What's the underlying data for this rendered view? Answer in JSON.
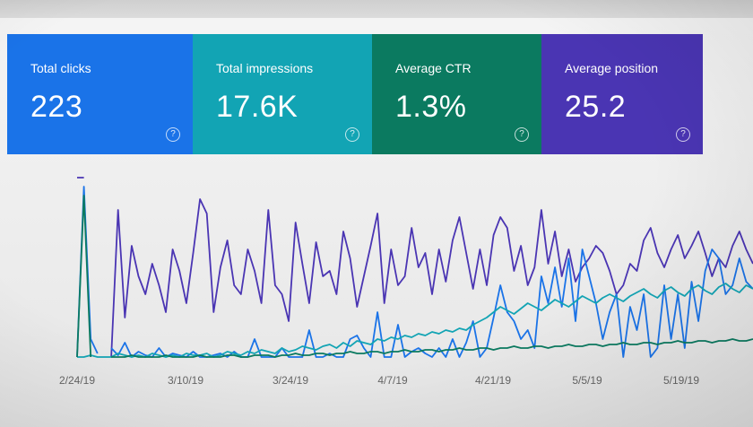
{
  "metrics": [
    {
      "label": "Total clicks",
      "value": "223",
      "color": "#1a73e8"
    },
    {
      "label": "Total impressions",
      "value": "17.6K",
      "color": "#12a4b4"
    },
    {
      "label": "Average CTR",
      "value": "1.3%",
      "color": "#0b7a60"
    },
    {
      "label": "Average position",
      "value": "25.2",
      "color": "#4a35b3"
    }
  ],
  "help_icon": "help-circle-icon",
  "help_glyph": "?",
  "chart_data": {
    "type": "line",
    "x_tick_labels": [
      "2/24/19",
      "3/10/19",
      "3/24/19",
      "4/7/19",
      "4/21/19",
      "5/5/19",
      "5/19/19"
    ],
    "series": [
      {
        "color": "#4a35b3",
        "values": [
          100,
          100,
          null,
          null,
          null,
          0,
          82,
          22,
          62,
          45,
          35,
          52,
          40,
          25,
          60,
          48,
          30,
          58,
          88,
          80,
          25,
          50,
          65,
          40,
          35,
          60,
          48,
          30,
          82,
          40,
          35,
          20,
          75,
          52,
          30,
          64,
          45,
          48,
          35,
          70,
          55,
          28,
          45,
          62,
          80,
          30,
          60,
          40,
          45,
          72,
          50,
          58,
          35,
          60,
          42,
          65,
          78,
          58,
          38,
          60,
          40,
          68,
          78,
          72,
          48,
          62,
          40,
          50,
          82,
          52,
          70,
          45,
          60,
          42,
          50,
          55,
          62,
          58,
          48,
          35,
          40,
          52,
          48,
          65,
          72,
          58,
          50,
          60,
          68,
          55,
          62,
          70,
          58,
          45,
          55,
          50,
          62,
          70,
          60,
          52
        ]
      },
      {
        "color": "#1a73e8",
        "values": [
          0,
          95,
          10,
          2,
          null,
          5,
          1,
          8,
          0,
          3,
          1,
          0,
          5,
          0,
          2,
          1,
          0,
          3,
          0,
          0,
          1,
          2,
          0,
          3,
          0,
          0,
          10,
          0,
          0,
          0,
          5,
          0,
          0,
          0,
          15,
          0,
          0,
          2,
          0,
          0,
          10,
          12,
          5,
          0,
          25,
          0,
          0,
          18,
          0,
          3,
          5,
          2,
          0,
          5,
          0,
          10,
          0,
          8,
          20,
          0,
          5,
          22,
          40,
          25,
          20,
          10,
          15,
          5,
          45,
          30,
          50,
          28,
          55,
          20,
          60,
          45,
          30,
          10,
          25,
          35,
          0,
          28,
          15,
          35,
          0,
          5,
          40,
          10,
          35,
          5,
          42,
          20,
          48,
          60,
          55,
          35,
          40,
          55,
          42,
          38
        ]
      },
      {
        "color": "#12a4b4",
        "values": [
          0,
          0,
          1,
          0,
          0,
          0,
          2,
          1,
          0,
          1,
          0,
          2,
          1,
          0,
          1,
          0,
          2,
          1,
          1,
          2,
          0,
          1,
          3,
          2,
          1,
          3,
          2,
          4,
          3,
          2,
          5,
          3,
          4,
          6,
          5,
          4,
          6,
          7,
          5,
          8,
          6,
          9,
          8,
          7,
          10,
          9,
          11,
          10,
          12,
          11,
          13,
          12,
          14,
          13,
          15,
          14,
          16,
          15,
          18,
          20,
          22,
          25,
          28,
          26,
          24,
          27,
          30,
          28,
          26,
          29,
          32,
          30,
          28,
          31,
          34,
          32,
          30,
          33,
          35,
          33,
          31,
          34,
          36,
          38,
          35,
          33,
          37,
          39,
          36,
          34,
          38,
          40,
          37,
          35,
          39,
          41,
          38,
          36,
          40,
          38
        ]
      },
      {
        "color": "#0b7a60",
        "values": [
          0,
          90,
          0,
          null,
          null,
          0,
          0,
          0,
          1,
          0,
          0,
          0,
          0,
          1,
          0,
          0,
          0,
          0,
          1,
          0,
          0,
          0,
          1,
          1,
          0,
          0,
          1,
          1,
          1,
          0,
          1,
          1,
          2,
          1,
          1,
          2,
          2,
          1,
          2,
          2,
          3,
          2,
          2,
          3,
          3,
          2,
          3,
          3,
          4,
          3,
          3,
          4,
          4,
          3,
          4,
          4,
          5,
          4,
          4,
          5,
          5,
          4,
          5,
          5,
          6,
          5,
          5,
          6,
          6,
          5,
          6,
          6,
          7,
          6,
          6,
          7,
          7,
          6,
          7,
          7,
          8,
          7,
          7,
          8,
          8,
          7,
          8,
          8,
          9,
          8,
          8,
          9,
          9,
          8,
          9,
          9,
          10,
          9,
          9,
          10
        ]
      }
    ]
  }
}
